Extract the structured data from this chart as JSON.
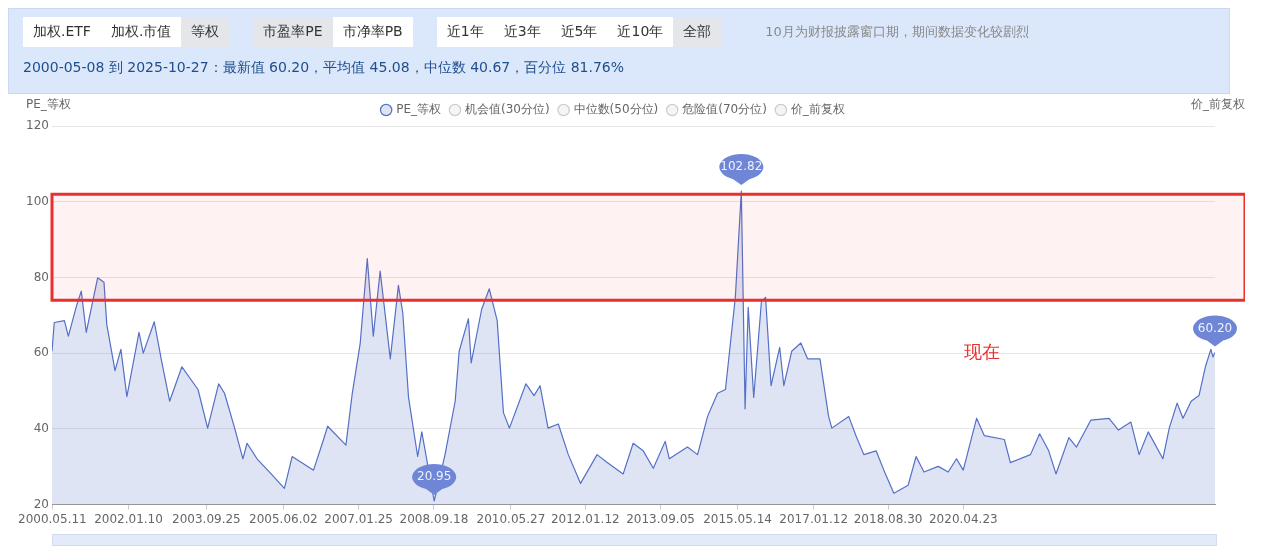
{
  "chart_data": {
    "type": "area",
    "subtitle": "2000-05-08 到 2025-10-27：最新值 60.20，平均值 45.08，中位数 40.67，百分位 81.76%",
    "ylabel": "PE_等权",
    "y2label": "价_前复权",
    "annotations": [
      "加权.ETF",
      "加权.市值",
      "等权",
      "市盈率PE",
      "市净率PB",
      "近1年",
      "近3年",
      "近5年",
      "近10年",
      "全部",
      "10月为财报披露窗口期，期间数据变化较剧烈",
      "现在"
    ],
    "x": [
      "2000-05-08",
      "2000-05-26",
      "2000-08-15",
      "2000-09-16",
      "2000-11-21",
      "2000-12-28",
      "2001-02-06",
      "2001-05-08",
      "2001-06-28",
      "2001-07-20",
      "2001-09-24",
      "2001-11-10",
      "2001-12-28",
      "2002-04-04",
      "2002-05-08",
      "2002-08-04",
      "2002-10-01",
      "2002-12-05",
      "2003-03-13",
      "2003-07-20",
      "2003-10-05",
      "2004-01-01",
      "2004-02-17",
      "2004-05-08",
      "2004-07-13",
      "2004-08-15",
      "2004-11-03",
      "2005-02-24",
      "2005-06-10",
      "2005-08-11",
      "2006-01-29",
      "2006-04-19",
      "2006-05-22",
      "2006-10-15",
      "2006-12-05",
      "2007-02-06",
      "2007-04-04",
      "2007-05-22",
      "2007-07-16",
      "2007-10-05",
      "2007-12-09",
      "2008-01-13",
      "2008-02-28",
      "2008-05-11",
      "2008-06-13",
      "2008-09-20",
      "2008-12-16",
      "2009-03-07",
      "2009-04-08",
      "2009-06-21",
      "2009-07-13",
      "2009-10-05",
      "2009-12-05",
      "2010-02-06",
      "2010-03-28",
      "2010-05-15",
      "2010-09-24",
      "2010-11-28",
      "2011-01-15",
      "2011-03-20",
      "2011-06-10",
      "2011-08-29",
      "2011-12-05",
      "2012-04-15",
      "2012-07-05",
      "2012-11-10",
      "2013-01-29",
      "2013-04-19",
      "2013-07-09",
      "2013-10-12",
      "2013-11-14",
      "2014-04-08",
      "2014-06-28",
      "2014-09-16",
      "2014-12-05",
      "2015-02-06",
      "2015-04-26",
      "2015-06-13",
      "2015-07-13",
      "2015-08-07",
      "2015-09-20",
      "2015-11-21",
      "2015-12-24",
      "2016-02-06",
      "2016-04-15",
      "2016-05-18",
      "2016-07-20",
      "2016-10-01",
      "2016-11-24",
      "2017-03-03",
      "2017-05-11",
      "2017-06-06",
      "2017-10-19",
      "2017-12-16",
      "2018-02-17",
      "2018-05-26",
      "2018-07-27",
      "2018-10-15",
      "2019-02-06",
      "2019-04-11",
      "2019-06-13",
      "2019-10-05",
      "2019-12-24",
      "2020-02-28",
      "2020-04-22",
      "2020-08-07",
      "2020-10-08",
      "2021-03-17",
      "2021-05-04",
      "2021-10-12",
      "2021-12-24",
      "2022-03-07",
      "2022-05-04",
      "2022-08-15",
      "2022-10-15",
      "2023-02-06",
      "2023-07-02",
      "2023-09-16",
      "2023-12-24",
      "2024-02-28",
      "2024-05-11",
      "2024-09-05",
      "2024-10-26",
      "2024-12-28",
      "2025-02-13",
      "2025-04-19",
      "2025-06-21",
      "2025-08-11",
      "2025-09-24",
      "2025-10-10",
      "2025-10-27"
    ],
    "series": [
      {
        "name": "PE_等权",
        "color": "#5470c6",
        "values": [
          60.5,
          68.1,
          68.6,
          64.5,
          72.6,
          76.4,
          65.5,
          79.9,
          78.7,
          67.6,
          55.4,
          61,
          48.5,
          65.5,
          60,
          68.3,
          58,
          47.3,
          56.4,
          50.4,
          40.2,
          51.9,
          49.4,
          40.2,
          32.1,
          36.2,
          32.1,
          28.1,
          24.3,
          32.7,
          29.1,
          37.2,
          40.7,
          35.7,
          49.4,
          62.5,
          85,
          64.5,
          81.7,
          58.5,
          77.9,
          70.6,
          48.3,
          32.7,
          39.2,
          20.95,
          33.2,
          47.3,
          60.5,
          69.1,
          57.4,
          71.6,
          77,
          68.6,
          44.3,
          40.2,
          51.9,
          48.8,
          51.4,
          40.2,
          41.3,
          33.2,
          25.6,
          33.2,
          31.1,
          28.1,
          36.2,
          34.2,
          29.6,
          36.7,
          32.1,
          35.2,
          33.2,
          43.3,
          49.4,
          50.4,
          74.7,
          102.82,
          45.3,
          72.1,
          48.3,
          73.7,
          74.7,
          51.4,
          61.5,
          51.4,
          60.5,
          62.7,
          58.5,
          58.5,
          43.3,
          40.2,
          43.3,
          38.2,
          33.2,
          34.2,
          29.1,
          23,
          25.1,
          32.7,
          28.6,
          30.1,
          28.6,
          32.1,
          29.1,
          42.8,
          38.2,
          37.2,
          31.1,
          33.2,
          38.7,
          34.2,
          28.1,
          37.7,
          35.2,
          42.3,
          42.8,
          39.7,
          41.8,
          33.2,
          39.2,
          32.1,
          40.2,
          46.8,
          42.8,
          47.3,
          48.8,
          56.4,
          61,
          59,
          60.2
        ],
        "value_labels": [
          null,
          null,
          null,
          null,
          null,
          null,
          null,
          null,
          null,
          null,
          null,
          null,
          null,
          null,
          null,
          null,
          null,
          null,
          null,
          null,
          null,
          null,
          null,
          null,
          null,
          null,
          null,
          null,
          null,
          null,
          null,
          null,
          null,
          null,
          null,
          null,
          null,
          null,
          null,
          null,
          null,
          null,
          null,
          null,
          null,
          "20.95",
          null,
          null,
          null,
          null,
          null,
          null,
          null,
          null,
          null,
          null,
          null,
          null,
          null,
          null,
          null,
          null,
          null,
          null,
          null,
          null,
          null,
          null,
          null,
          null,
          null,
          null,
          null,
          null,
          null,
          null,
          null,
          "102.82",
          null,
          null,
          null,
          null,
          null,
          null,
          null,
          null,
          null,
          null,
          null,
          null,
          null,
          null,
          null,
          null,
          null,
          null,
          null,
          null,
          null,
          null,
          null,
          null,
          null,
          null,
          null,
          null,
          null,
          null,
          null,
          null,
          null,
          null,
          null,
          null,
          null,
          null,
          null,
          null,
          null,
          null,
          null,
          null,
          null,
          null,
          null,
          null,
          null,
          null,
          null,
          null,
          "60.20"
        ]
      },
      {
        "name": "机会值(30分位)",
        "color": "#cccccc",
        "values": [
          null,
          null,
          null,
          null,
          null,
          null,
          null,
          null,
          null,
          null,
          null,
          null,
          null,
          null,
          null,
          null,
          null,
          null,
          null,
          null,
          null,
          null,
          null,
          null,
          null,
          null,
          null,
          null,
          null,
          null,
          null,
          null,
          null,
          null,
          null,
          null,
          null,
          null,
          null,
          null,
          null,
          null,
          null,
          null,
          null,
          null,
          null,
          null,
          null,
          null,
          null,
          null,
          null,
          null,
          null,
          null,
          null,
          null,
          null,
          null,
          null,
          null,
          null,
          null,
          null,
          null,
          null,
          null,
          null,
          null,
          null,
          null,
          null,
          null,
          null,
          null,
          null,
          null,
          null,
          null,
          null,
          null,
          null,
          null,
          null,
          null,
          null,
          null,
          null,
          null,
          null,
          null,
          null,
          null,
          null,
          null,
          null,
          null,
          null,
          null,
          null,
          null,
          null,
          null,
          null,
          null,
          null,
          null,
          null,
          null,
          null,
          null,
          null,
          null,
          null,
          null,
          null,
          null,
          null,
          null,
          null,
          null,
          null,
          null,
          null,
          null,
          null,
          null,
          null,
          null,
          null
        ]
      },
      {
        "name": "中位数(50分位)",
        "color": "#cccccc",
        "values": [
          null,
          null,
          null,
          null,
          null,
          null,
          null,
          null,
          null,
          null,
          null,
          null,
          null,
          null,
          null,
          null,
          null,
          null,
          null,
          null,
          null,
          null,
          null,
          null,
          null,
          null,
          null,
          null,
          null,
          null,
          null,
          null,
          null,
          null,
          null,
          null,
          null,
          null,
          null,
          null,
          null,
          null,
          null,
          null,
          null,
          null,
          null,
          null,
          null,
          null,
          null,
          null,
          null,
          null,
          null,
          null,
          null,
          null,
          null,
          null,
          null,
          null,
          null,
          null,
          null,
          null,
          null,
          null,
          null,
          null,
          null,
          null,
          null,
          null,
          null,
          null,
          null,
          null,
          null,
          null,
          null,
          null,
          null,
          null,
          null,
          null,
          null,
          null,
          null,
          null,
          null,
          null,
          null,
          null,
          null,
          null,
          null,
          null,
          null,
          null,
          null,
          null,
          null,
          null,
          null,
          null,
          null,
          null,
          null,
          null,
          null,
          null,
          null,
          null,
          null,
          null,
          null,
          null,
          null,
          null,
          null,
          null,
          null,
          null,
          null,
          null,
          null,
          null,
          null,
          null,
          null
        ]
      },
      {
        "name": "危险值(70分位)",
        "color": "#cccccc",
        "values": [
          null,
          null,
          null,
          null,
          null,
          null,
          null,
          null,
          null,
          null,
          null,
          null,
          null,
          null,
          null,
          null,
          null,
          null,
          null,
          null,
          null,
          null,
          null,
          null,
          null,
          null,
          null,
          null,
          null,
          null,
          null,
          null,
          null,
          null,
          null,
          null,
          null,
          null,
          null,
          null,
          null,
          null,
          null,
          null,
          null,
          null,
          null,
          null,
          null,
          null,
          null,
          null,
          null,
          null,
          null,
          null,
          null,
          null,
          null,
          null,
          null,
          null,
          null,
          null,
          null,
          null,
          null,
          null,
          null,
          null,
          null,
          null,
          null,
          null,
          null,
          null,
          null,
          null,
          null,
          null,
          null,
          null,
          null,
          null,
          null,
          null,
          null,
          null,
          null,
          null,
          null,
          null,
          null,
          null,
          null,
          null,
          null,
          null,
          null,
          null,
          null,
          null,
          null,
          null,
          null,
          null,
          null,
          null,
          null,
          null,
          null,
          null,
          null,
          null,
          null,
          null,
          null,
          null,
          null,
          null,
          null,
          null,
          null,
          null,
          null,
          null,
          null,
          null,
          null,
          null,
          null
        ]
      },
      {
        "name": "价_前复权",
        "color": "#cccccc",
        "values": [
          null,
          null,
          null,
          null,
          null,
          null,
          null,
          null,
          null,
          null,
          null,
          null,
          null,
          null,
          null,
          null,
          null,
          null,
          null,
          null,
          null,
          null,
          null,
          null,
          null,
          null,
          null,
          null,
          null,
          null,
          null,
          null,
          null,
          null,
          null,
          null,
          null,
          null,
          null,
          null,
          null,
          null,
          null,
          null,
          null,
          null,
          null,
          null,
          null,
          null,
          null,
          null,
          null,
          null,
          null,
          null,
          null,
          null,
          null,
          null,
          null,
          null,
          null,
          null,
          null,
          null,
          null,
          null,
          null,
          null,
          null,
          null,
          null,
          null,
          null,
          null,
          null,
          null,
          null,
          null,
          null,
          null,
          null,
          null,
          null,
          null,
          null,
          null,
          null,
          null,
          null,
          null,
          null,
          null,
          null,
          null,
          null,
          null,
          null,
          null,
          null,
          null,
          null,
          null,
          null,
          null,
          null,
          null,
          null,
          null,
          null,
          null,
          null,
          null,
          null,
          null,
          null,
          null,
          null,
          null,
          null,
          null,
          null,
          null,
          null,
          null,
          null,
          null,
          null,
          null,
          null
        ]
      }
    ],
    "xlim": [
      "2000-05-08",
      "2025-10-27"
    ],
    "xticks": [
      {
        "value": "2000-05-11",
        "label": "2000.05.11"
      },
      {
        "value": "2002-01-10",
        "label": "2002.01.10"
      },
      {
        "value": "2003-09-25",
        "label": "2003.09.25"
      },
      {
        "value": "2005-06-02",
        "label": "2005.06.02"
      },
      {
        "value": "2007-01-25",
        "label": "2007.01.25"
      },
      {
        "value": "2008-09-18",
        "label": "2008.09.18"
      },
      {
        "value": "2010-05-27",
        "label": "2010.05.27"
      },
      {
        "value": "2012-01-12",
        "label": "2012.01.12"
      },
      {
        "value": "2013-09-05",
        "label": "2013.09.05"
      },
      {
        "value": "2015-05-14",
        "label": "2015.05.14"
      },
      {
        "value": "2017-01-12",
        "label": "2017.01.12"
      },
      {
        "value": "2018-08-30",
        "label": "2018.08.30"
      },
      {
        "value": "2020-04-23",
        "label": "2020.04.23"
      }
    ],
    "ylim": [
      20,
      120
    ],
    "yticks": [
      20,
      40,
      60,
      80,
      100,
      120
    ],
    "bands": [
      {
        "axis": "y",
        "from": 74,
        "to": 102,
        "color": "#e8302f"
      }
    ],
    "grid": "y",
    "legend": "top",
    "marker": "none"
  }
}
